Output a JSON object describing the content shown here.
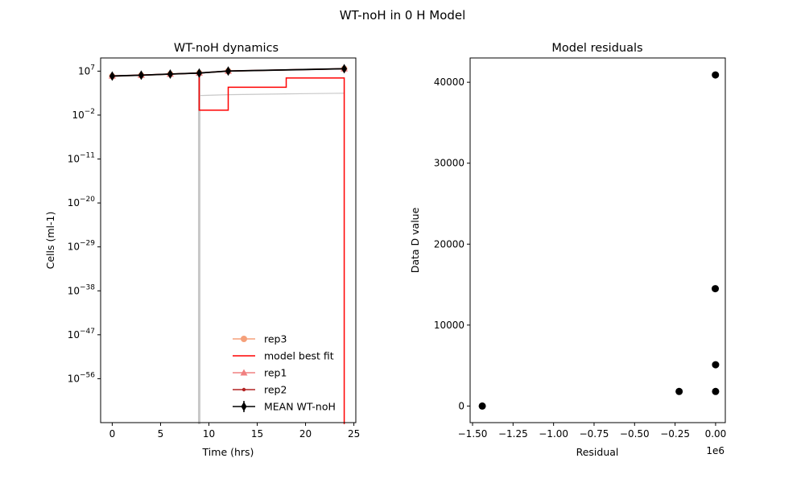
{
  "figure": {
    "suptitle": "WT-noH in 0 H Model"
  },
  "colors": {
    "rep3": "#f5a07a",
    "model": "#ff0000",
    "rep1": "#f08080",
    "rep2": "#b22222",
    "mean": "#000000",
    "envelope": "#c8c8c8",
    "residual": "#000000"
  },
  "chart_data": [
    {
      "type": "line",
      "title": "WT-noH dynamics",
      "xlabel": "Time (hrs)",
      "ylabel": "Cells (ml-1)",
      "yscale": "log",
      "xlim": [
        -1.2,
        25.2
      ],
      "ylim_log10": [
        -65,
        9.7
      ],
      "xticks": [
        0,
        5,
        10,
        15,
        20,
        25
      ],
      "xtick_labels": [
        "0",
        "5",
        "10",
        "15",
        "20",
        "25"
      ],
      "yticks_log10": [
        7,
        -2,
        -11,
        -20,
        -29,
        -38,
        -47,
        -56
      ],
      "ytick_labels": [
        {
          "base": "10",
          "exp": "7"
        },
        {
          "base": "10",
          "exp": "−2"
        },
        {
          "base": "10",
          "exp": "−11"
        },
        {
          "base": "10",
          "exp": "−20"
        },
        {
          "base": "10",
          "exp": "−29"
        },
        {
          "base": "10",
          "exp": "−38"
        },
        {
          "base": "10",
          "exp": "−47"
        },
        {
          "base": "10",
          "exp": "−56"
        }
      ],
      "legend_position": "lower-right",
      "series": [
        {
          "name": "rep3",
          "marker": "circle",
          "x": [
            0,
            3,
            6,
            9,
            12,
            24
          ],
          "y": [
            900000,
            1400000,
            2400000,
            4000000,
            10000000,
            30000000
          ]
        },
        {
          "name": " model best fit",
          "style": "step",
          "x": [
            0,
            9,
            9,
            12,
            12,
            18,
            18,
            24,
            24
          ],
          "y": [
            1000000,
            4000000,
            0.1,
            0.1,
            5000,
            5000,
            400000,
            400000,
            1e-66
          ]
        },
        {
          "name": "rep1",
          "marker": "triangle",
          "x": [
            0,
            3,
            6,
            9,
            12,
            24
          ],
          "y": [
            1100000,
            1600000,
            2600000,
            4300000,
            11000000,
            32000000
          ]
        },
        {
          "name": "rep2",
          "marker": "dot",
          "x": [
            0,
            3,
            6,
            9,
            12,
            24
          ],
          "y": [
            1000000,
            1500000,
            2500000,
            4100000,
            10500000,
            31000000
          ]
        },
        {
          "name": "MEAN WT-noH",
          "marker": "thin_diamond",
          "x": [
            0,
            3,
            6,
            9,
            12,
            24
          ],
          "y": [
            1000000,
            1500000,
            2500000,
            4100000,
            10500000,
            31000000
          ],
          "yerr_factor": [
            1.6,
            1.6,
            1.6,
            1.6,
            1.6,
            1.6
          ]
        }
      ],
      "background_curves": [
        {
          "x": [
            9,
            9
          ],
          "y": [
            4000000,
            1e-66
          ]
        },
        {
          "x": [
            9,
            12,
            18,
            24
          ],
          "y": [
            100,
            150,
            220,
            300
          ]
        }
      ]
    },
    {
      "type": "scatter",
      "title": "Model residuals",
      "xlabel": "Residual",
      "ylabel": "Data D value",
      "x_offset_label": "1e6",
      "xlim": [
        -1.515,
        0.06
      ],
      "ylim": [
        -2050,
        43000
      ],
      "xticks": [
        -1.5,
        -1.25,
        -1.0,
        -0.75,
        -0.5,
        -0.25,
        0.0
      ],
      "xtick_labels": [
        "−1.50",
        "−1.25",
        "−1.00",
        "−0.75",
        "−0.50",
        "−0.25",
        "0.00"
      ],
      "yticks": [
        0,
        10000,
        20000,
        30000,
        40000
      ],
      "ytick_labels": [
        "0",
        "10000",
        "20000",
        "30000",
        "40000"
      ],
      "points": [
        {
          "x": -1.44,
          "y": 0
        },
        {
          "x": -0.225,
          "y": 1800
        },
        {
          "x": 0.0,
          "y": 1800
        },
        {
          "x": 0.0,
          "y": 5100
        },
        {
          "x": -0.002,
          "y": 14500
        },
        {
          "x": -0.001,
          "y": 40900
        }
      ]
    }
  ]
}
